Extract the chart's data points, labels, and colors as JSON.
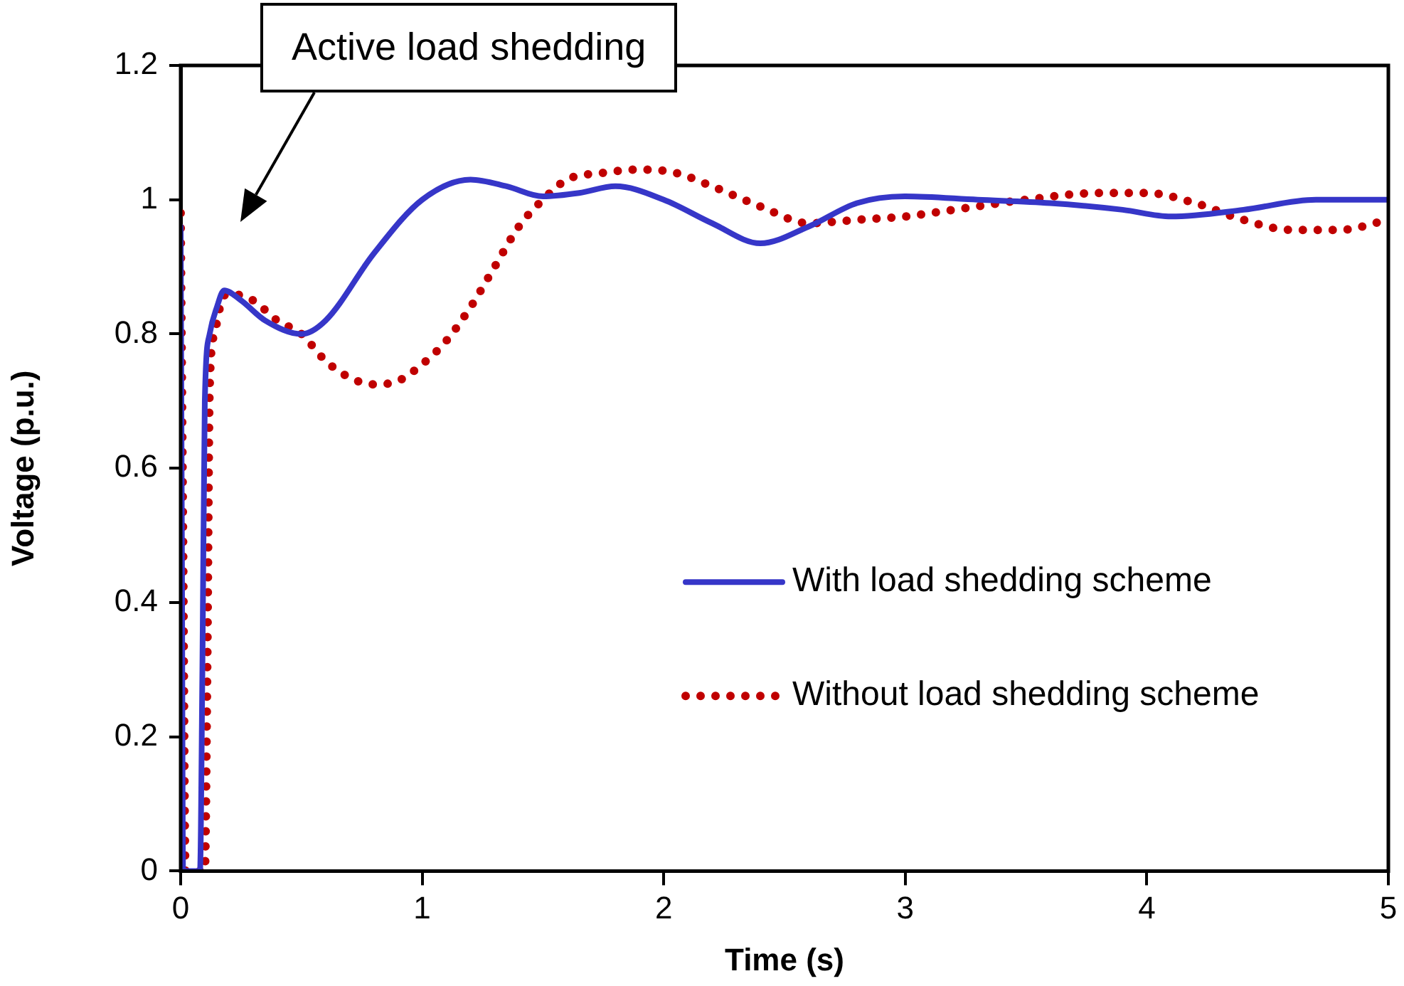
{
  "chart_data": {
    "type": "line",
    "xlabel": "Time (s)",
    "ylabel": "Voltage (p.u.)",
    "xlim": [
      0,
      5
    ],
    "xticks": [
      0,
      1,
      2,
      3,
      4,
      5
    ],
    "ylim": [
      0,
      1.2
    ],
    "yticks": [
      0,
      0.2,
      0.4,
      0.6,
      0.8,
      1,
      1.2
    ],
    "grid": false,
    "legend": "right",
    "marker": "none",
    "annotations": [
      "Active load shedding"
    ],
    "series": [
      {
        "name": "With load shedding scheme",
        "color": "#3636c8",
        "line_style": "solid",
        "x": [
          0,
          0.005,
          0.01,
          0.03,
          0.06,
          0.08,
          0.09,
          0.1,
          0.12,
          0.15,
          0.18,
          0.25,
          0.35,
          0.5,
          0.6,
          0.8,
          1.0,
          1.2,
          1.35,
          1.5,
          1.65,
          1.8,
          2.0,
          2.2,
          2.4,
          2.6,
          2.8,
          3.0,
          3.3,
          3.6,
          3.9,
          4.1,
          4.4,
          4.7,
          5.0
        ],
        "values": [
          0.96,
          0.5,
          0,
          0,
          0,
          0,
          0.3,
          0.7,
          0.8,
          0.84,
          0.865,
          0.85,
          0.82,
          0.8,
          0.82,
          0.92,
          1.0,
          1.03,
          1.02,
          1.005,
          1.01,
          1.02,
          1.0,
          0.965,
          0.935,
          0.96,
          0.995,
          1.005,
          1.0,
          0.995,
          0.985,
          0.975,
          0.985,
          1.0,
          1.0
        ]
      },
      {
        "name": "Without load shedding scheme",
        "color": "#c00000",
        "line_style": "dotted",
        "x": [
          0,
          0.01,
          0.02,
          0.05,
          0.08,
          0.1,
          0.11,
          0.12,
          0.14,
          0.17,
          0.2,
          0.3,
          0.4,
          0.5,
          0.6,
          0.7,
          0.8,
          0.9,
          1.0,
          1.1,
          1.2,
          1.3,
          1.4,
          1.5,
          1.6,
          1.75,
          1.9,
          2.05,
          2.2,
          2.4,
          2.6,
          2.8,
          3.0,
          3.2,
          3.5,
          3.8,
          4.0,
          4.2,
          4.4,
          4.6,
          4.8,
          5.0
        ],
        "values": [
          0.98,
          0.5,
          0,
          0,
          0,
          0,
          0.3,
          0.72,
          0.8,
          0.85,
          0.86,
          0.85,
          0.82,
          0.8,
          0.76,
          0.735,
          0.725,
          0.73,
          0.755,
          0.79,
          0.84,
          0.9,
          0.96,
          1.0,
          1.03,
          1.04,
          1.045,
          1.04,
          1.02,
          0.99,
          0.965,
          0.97,
          0.975,
          0.985,
          1.0,
          1.01,
          1.01,
          0.995,
          0.97,
          0.955,
          0.955,
          0.97
        ]
      }
    ]
  }
}
